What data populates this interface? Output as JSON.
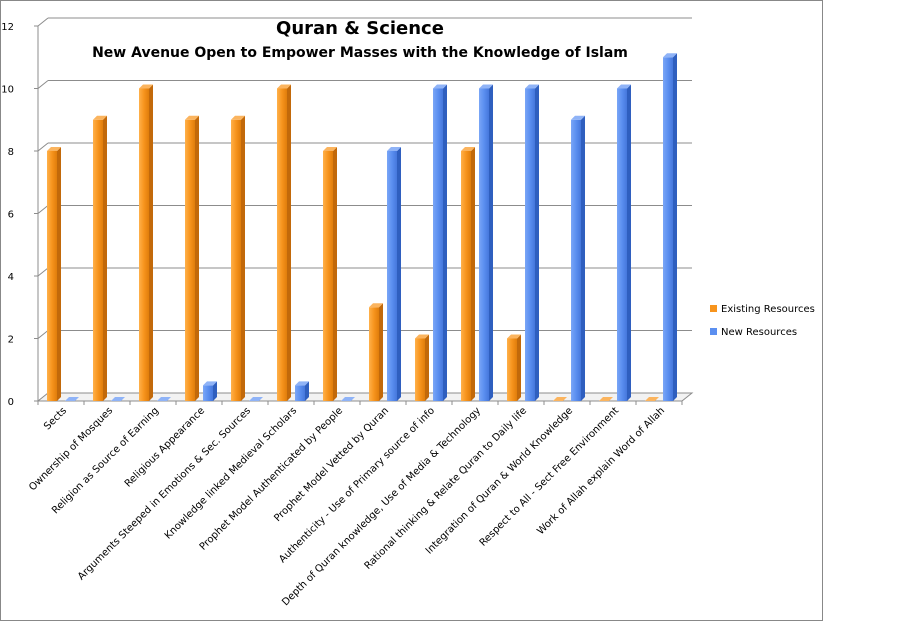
{
  "chart_data": {
    "type": "bar",
    "title": "Quran & Science",
    "subtitle": "New Avenue Open to Empower Masses with the Knowledge of Islam",
    "xlabel": "",
    "ylabel": "",
    "ylim": [
      0,
      12
    ],
    "yticks": [
      0,
      2,
      4,
      6,
      8,
      10,
      12
    ],
    "grid": true,
    "legend_position": "right",
    "categories": [
      "Sects",
      "Ownership of Mosques",
      "Religion as Source of Earning",
      "Religious Appearance",
      "Arguments Steeped in Emotions & Sec. Sources",
      "Knowledge linked Medieval Scholars",
      "Prophet Model Authenticated by People",
      "Prophet Model Vetted by Quran",
      "Authenticity - Use of Primary source of info",
      "Depth of Quran knowledge, Use of Media & Technology",
      "Rational thinking & Relate Quran to Daily life",
      "Integration of Quran & World Knowledge",
      "Respect to All - Sect Free Environment",
      "Work of Allah explain Word of Allah"
    ],
    "series": [
      {
        "name": "Existing Resources",
        "color": "#f7941d",
        "values": [
          8,
          9,
          10,
          9,
          9,
          10,
          8,
          3,
          2,
          8,
          2,
          0,
          0,
          0
        ]
      },
      {
        "name": "New Resources",
        "color": "#5b8ff0",
        "values": [
          0,
          0,
          0,
          0.5,
          0,
          0.5,
          0,
          8,
          10,
          10,
          10,
          9,
          10,
          11
        ]
      }
    ]
  }
}
